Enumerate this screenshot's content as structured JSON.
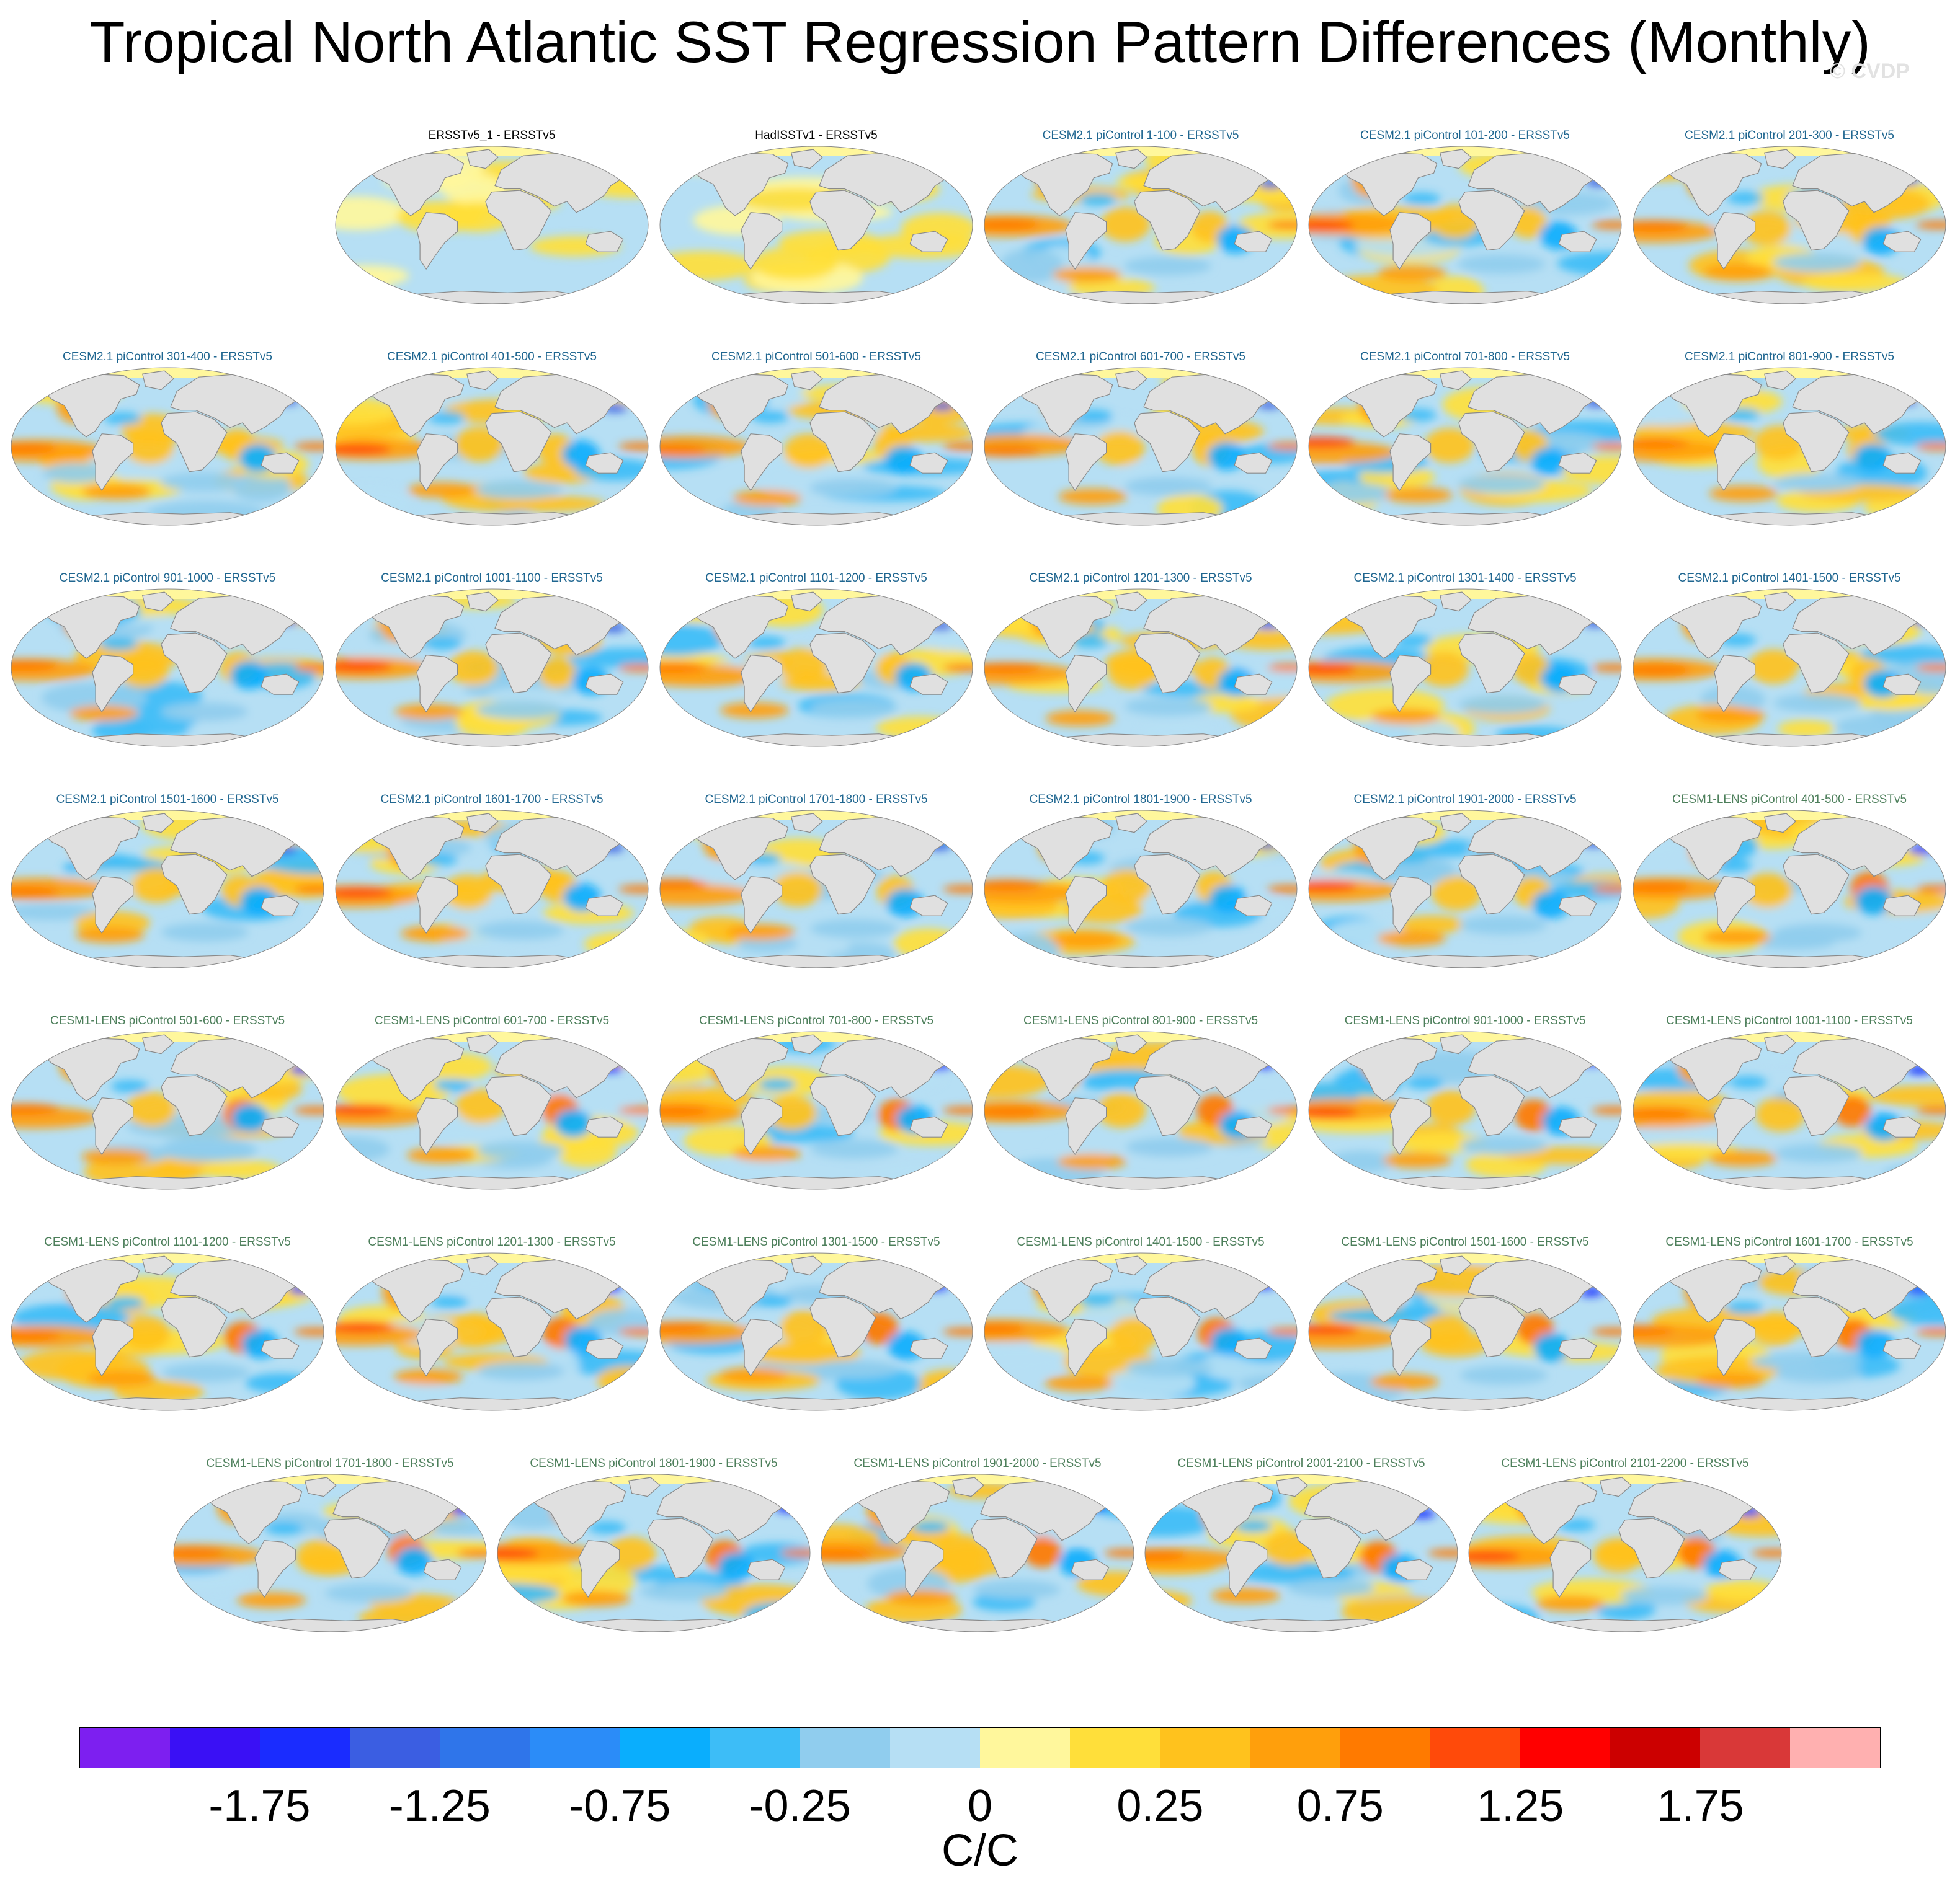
{
  "chart_data": {
    "type": "heatmap",
    "title": "Tropical North Atlantic SST Regression Pattern Differences (Monthly)",
    "watermark": "© CVDP",
    "panels": [
      {
        "title": "ERSSTv5_1 - ERSSTv5",
        "source": "obs"
      },
      {
        "title": "HadISSTv1 - ERSSTv5",
        "source": "obs"
      },
      {
        "title": "CESM2.1 piControl 1-100 - ERSSTv5",
        "source": "cesm2"
      },
      {
        "title": "CESM2.1 piControl 101-200 - ERSSTv5",
        "source": "cesm2"
      },
      {
        "title": "CESM2.1 piControl 201-300 - ERSSTv5",
        "source": "cesm2"
      },
      {
        "title": "CESM2.1 piControl 301-400 - ERSSTv5",
        "source": "cesm2"
      },
      {
        "title": "CESM2.1 piControl 401-500 - ERSSTv5",
        "source": "cesm2"
      },
      {
        "title": "CESM2.1 piControl 501-600 - ERSSTv5",
        "source": "cesm2"
      },
      {
        "title": "CESM2.1 piControl 601-700 - ERSSTv5",
        "source": "cesm2"
      },
      {
        "title": "CESM2.1 piControl 701-800 - ERSSTv5",
        "source": "cesm2"
      },
      {
        "title": "CESM2.1 piControl 801-900 - ERSSTv5",
        "source": "cesm2"
      },
      {
        "title": "CESM2.1 piControl 901-1000 - ERSSTv5",
        "source": "cesm2"
      },
      {
        "title": "CESM2.1 piControl 1001-1100 - ERSSTv5",
        "source": "cesm2"
      },
      {
        "title": "CESM2.1 piControl 1101-1200 - ERSSTv5",
        "source": "cesm2"
      },
      {
        "title": "CESM2.1 piControl 1201-1300 - ERSSTv5",
        "source": "cesm2"
      },
      {
        "title": "CESM2.1 piControl 1301-1400 - ERSSTv5",
        "source": "cesm2"
      },
      {
        "title": "CESM2.1 piControl 1401-1500 - ERSSTv5",
        "source": "cesm2"
      },
      {
        "title": "CESM2.1 piControl 1501-1600 - ERSSTv5",
        "source": "cesm2"
      },
      {
        "title": "CESM2.1 piControl 1601-1700 - ERSSTv5",
        "source": "cesm2"
      },
      {
        "title": "CESM2.1 piControl 1701-1800 - ERSSTv5",
        "source": "cesm2"
      },
      {
        "title": "CESM2.1 piControl 1801-1900 - ERSSTv5",
        "source": "cesm2"
      },
      {
        "title": "CESM2.1 piControl 1901-2000 - ERSSTv5",
        "source": "cesm2"
      },
      {
        "title": "CESM1-LENS piControl 401-500 - ERSSTv5",
        "source": "cesm1"
      },
      {
        "title": "CESM1-LENS piControl 501-600 - ERSSTv5",
        "source": "cesm1"
      },
      {
        "title": "CESM1-LENS piControl 601-700 - ERSSTv5",
        "source": "cesm1"
      },
      {
        "title": "CESM1-LENS piControl 701-800 - ERSSTv5",
        "source": "cesm1"
      },
      {
        "title": "CESM1-LENS piControl 801-900 - ERSSTv5",
        "source": "cesm1"
      },
      {
        "title": "CESM1-LENS piControl 901-1000 - ERSSTv5",
        "source": "cesm1"
      },
      {
        "title": "CESM1-LENS piControl 1001-1100 - ERSSTv5",
        "source": "cesm1"
      },
      {
        "title": "CESM1-LENS piControl 1101-1200 - ERSSTv5",
        "source": "cesm1"
      },
      {
        "title": "CESM1-LENS piControl 1201-1300 - ERSSTv5",
        "source": "cesm1"
      },
      {
        "title": "CESM1-LENS piControl 1301-1500 - ERSSTv5",
        "source": "cesm1"
      },
      {
        "title": "CESM1-LENS piControl 1401-1500 - ERSSTv5",
        "source": "cesm1"
      },
      {
        "title": "CESM1-LENS piControl 1501-1600 - ERSSTv5",
        "source": "cesm1"
      },
      {
        "title": "CESM1-LENS piControl 1601-1700 - ERSSTv5",
        "source": "cesm1"
      },
      {
        "title": "CESM1-LENS piControl 1701-1800 - ERSSTv5",
        "source": "cesm1"
      },
      {
        "title": "CESM1-LENS piControl 1801-1900 - ERSSTv5",
        "source": "cesm1"
      },
      {
        "title": "CESM1-LENS piControl 1901-2000 - ERSSTv5",
        "source": "cesm1"
      },
      {
        "title": "CESM1-LENS piControl 2001-2100 - ERSSTv5",
        "source": "cesm1"
      },
      {
        "title": "CESM1-LENS piControl 2101-2200 - ERSSTv5",
        "source": "cesm1"
      }
    ],
    "colorbar": {
      "colors": [
        "#7d1ff0",
        "#3a10f5",
        "#1a2cff",
        "#3b5ee2",
        "#2f75ea",
        "#2b8cf8",
        "#0aaefd",
        "#3dbdf7",
        "#90cdee",
        "#b6dff4",
        "#fff79c",
        "#ffdf3a",
        "#ffc21d",
        "#ff9f0c",
        "#ff7a00",
        "#ff4a0a",
        "#ff0000",
        "#cc0000",
        "#d93838",
        "#ffb0b0"
      ],
      "tick_labels": [
        "-1.75",
        "-1.25",
        "-0.75",
        "-0.25",
        "0",
        "0.25",
        "0.75",
        "1.25",
        "1.75"
      ],
      "units": "C/C"
    }
  }
}
